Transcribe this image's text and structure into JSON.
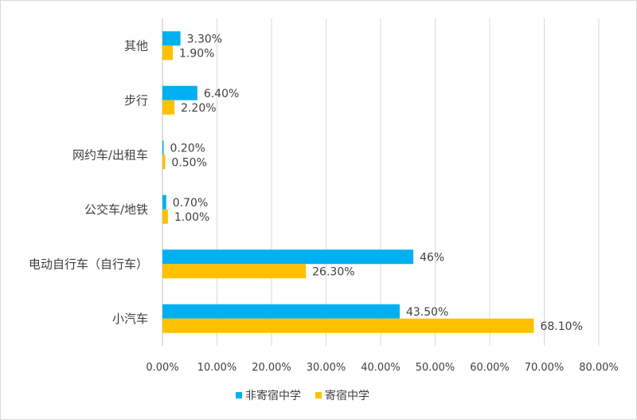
{
  "chart_data": {
    "type": "bar",
    "orientation": "horizontal",
    "categories": [
      "其他",
      "步行",
      "网约车/出租车",
      "公交车/地铁",
      "电动自行车（自行车）",
      "小汽车"
    ],
    "series": [
      {
        "name": "非寄宿中学",
        "color": "#00B0F0",
        "values": [
          3.3,
          6.4,
          0.2,
          0.7,
          46,
          43.5
        ],
        "labels": [
          "3.30%",
          "6.40%",
          "0.20%",
          "0.70%",
          "46%",
          "43.50%"
        ]
      },
      {
        "name": "寄宿中学",
        "color": "#FFC000",
        "values": [
          1.9,
          2.2,
          0.5,
          1.0,
          26.3,
          68.1
        ],
        "labels": [
          "1.90%",
          "2.20%",
          "0.50%",
          "1.00%",
          "26.30%",
          "68.10%"
        ]
      }
    ],
    "xlim": [
      0,
      80
    ],
    "xticks": [
      0,
      10,
      20,
      30,
      40,
      50,
      60,
      70,
      80
    ],
    "xtick_labels": [
      "0.00%",
      "10.00%",
      "20.00%",
      "30.00%",
      "40.00%",
      "50.00%",
      "60.00%",
      "70.00%",
      "80.00%"
    ],
    "grid": "vertical",
    "legend_position": "bottom"
  }
}
